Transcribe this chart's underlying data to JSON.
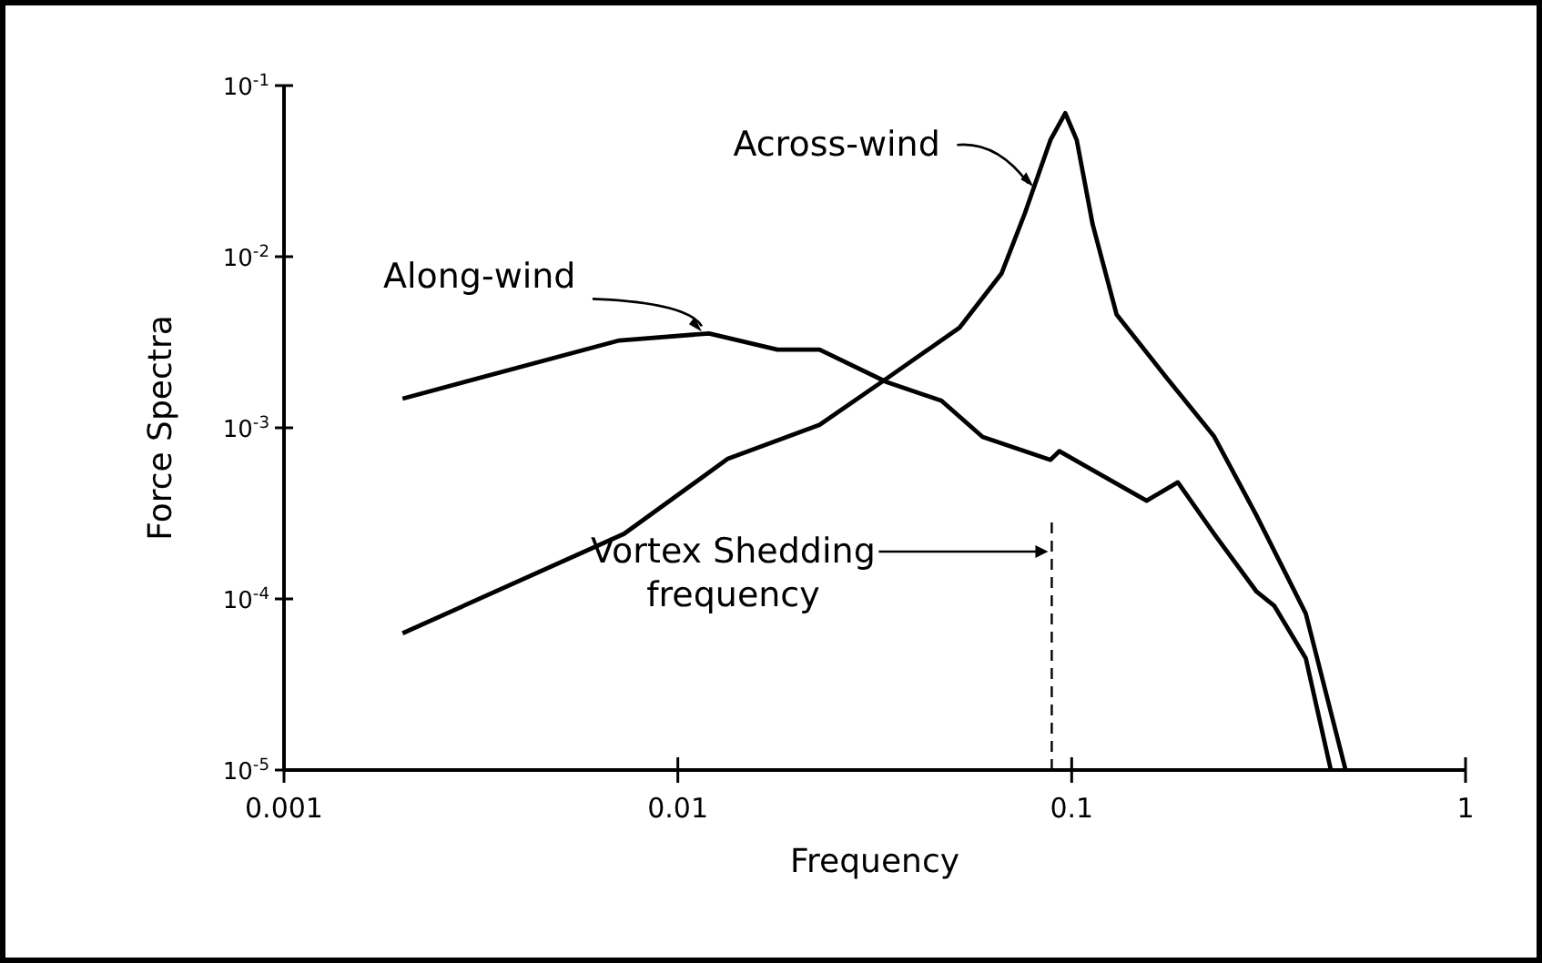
{
  "chart_data": {
    "type": "line",
    "xlabel": "Frequency",
    "ylabel": "Force Spectra",
    "log": "xy",
    "xlim": [
      0.001,
      1
    ],
    "ylim": [
      1e-05,
      0.1
    ],
    "xticks": [
      0.001,
      0.01,
      0.1,
      1
    ],
    "yticks": [
      {
        "value": 1e-05,
        "label": "10$^{-5}$"
      },
      {
        "value": 0.0001,
        "label": "10$^{-4}$"
      },
      {
        "value": 0.001,
        "label": "10$^{-3}$"
      },
      {
        "value": 0.01,
        "label": "10$^{-2}$"
      },
      {
        "value": 0.1,
        "label": "10$^{-1}$"
      }
    ],
    "grid": false,
    "marker": "none",
    "line_style": "solid",
    "series": [
      {
        "color": "#000000",
        "x": [
          0.002,
          0.0071,
          0.012,
          0.0179,
          0.0229,
          0.0339,
          0.0467,
          0.0594,
          0.0883,
          0.093,
          0.155,
          0.186,
          0.23,
          0.295,
          0.327,
          0.393,
          0.455
        ],
        "values": [
          0.00148,
          0.00324,
          0.00356,
          0.00286,
          0.00286,
          0.00185,
          0.00144,
          0.000885,
          0.00065,
          0.00073,
          0.000375,
          0.00048,
          0.00024,
          0.00011,
          9.1e-05,
          4.5e-05,
          1e-05
        ]
      },
      {
        "color": "#000000",
        "x": [
          0.002,
          0.0073,
          0.0134,
          0.0229,
          0.0339,
          0.0519,
          0.0664,
          0.0761,
          0.0883,
          0.0963,
          0.103,
          0.113,
          0.13,
          0.173,
          0.23,
          0.294,
          0.393,
          0.496
        ],
        "values": [
          6.3e-05,
          0.00024,
          0.00066,
          0.00104,
          0.00194,
          0.00385,
          0.008,
          0.018,
          0.048,
          0.069,
          0.048,
          0.0155,
          0.0046,
          0.002,
          0.00089,
          0.00031,
          8.2e-05,
          1e-05
        ]
      }
    ],
    "ref_lines": [
      {
        "axis": "x",
        "value": 0.089,
        "label": "Vortex Shedding\nfrequency",
        "color": "#000000",
        "line_style": "dashed"
      }
    ],
    "annotations": [
      {
        "text": "Across-wind",
        "x": 0.08,
        "y": 0.025
      },
      {
        "text": "Along-wind",
        "x": 0.0115,
        "y": 0.00356
      }
    ]
  }
}
